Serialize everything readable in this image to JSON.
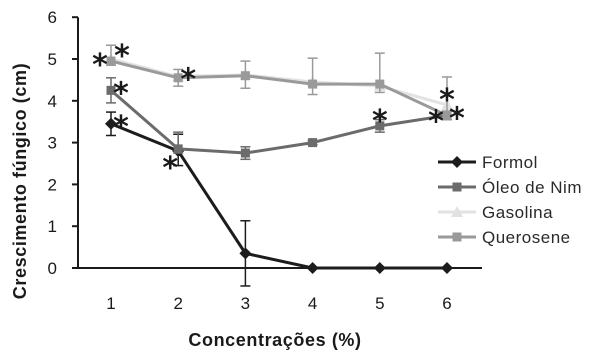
{
  "chart_data": {
    "type": "line",
    "xlabel": "Concentrações (%)",
    "ylabel": "Crescimento fúngico (cm)",
    "categories": [
      "1",
      "2",
      "3",
      "4",
      "5",
      "6"
    ],
    "ylim": [
      0,
      6
    ],
    "yticks": [
      0,
      1,
      2,
      3,
      4,
      5,
      6
    ],
    "grid": false,
    "legend_position": "right",
    "series": [
      {
        "name": "Formol",
        "color": "#1c1c1c",
        "marker": "diamond",
        "values": [
          3.45,
          2.8,
          0.35,
          0,
          0,
          0
        ],
        "error_plus": [
          0.28,
          0.4,
          0.78,
          0,
          0,
          0
        ],
        "error_minus": [
          0.28,
          0.35,
          0.78,
          0,
          0,
          0
        ]
      },
      {
        "name": "Óleo de Nim",
        "color": "#6b6b6b",
        "marker": "square",
        "values": [
          4.25,
          2.85,
          2.75,
          3.0,
          3.4,
          3.65
        ],
        "error_plus": [
          0.3,
          0.4,
          0.15,
          0.05,
          0.15,
          0.1
        ],
        "error_minus": [
          0.3,
          0.1,
          0.15,
          0.05,
          0.15,
          0.1
        ]
      },
      {
        "name": "Gasolina",
        "color": "#e2e2e2",
        "marker": "triangle",
        "values": [
          5.0,
          4.58,
          4.62,
          4.45,
          4.35,
          3.9
        ],
        "error_plus": [
          0,
          0,
          0,
          0,
          0,
          0
        ],
        "error_minus": [
          0,
          0,
          0,
          0,
          0,
          0
        ]
      },
      {
        "name": "Querosene",
        "color": "#9a9a9a",
        "marker": "square",
        "values": [
          4.95,
          4.55,
          4.6,
          4.4,
          4.4,
          3.65
        ],
        "error_plus": [
          0.38,
          0.2,
          0.35,
          0.62,
          0.74,
          0.92
        ],
        "error_minus": [
          0.1,
          0.2,
          0.3,
          0.25,
          0.2,
          0.1
        ]
      }
    ],
    "annotations": [
      {
        "text": "*",
        "series": "Gasolina",
        "x": "1",
        "position": "left"
      },
      {
        "text": "*",
        "series": "Gasolina",
        "x": "1",
        "position": "upper-right"
      },
      {
        "text": "*",
        "series": "Óleo de Nim",
        "x": "1",
        "position": "right"
      },
      {
        "text": "*",
        "series": "Formol",
        "x": "1",
        "position": "right"
      },
      {
        "text": "*",
        "series": "Gasolina",
        "x": "2",
        "position": "right"
      },
      {
        "text": "*",
        "series": "Formol",
        "x": "2",
        "position": "lower-left"
      },
      {
        "text": "*",
        "series": "Óleo de Nim",
        "x": "5",
        "position": "above"
      },
      {
        "text": "*",
        "series": "Gasolina",
        "x": "6",
        "position": "above"
      },
      {
        "text": "*",
        "series": "Óleo de Nim",
        "x": "6",
        "position": "left"
      },
      {
        "text": "*",
        "series": "Óleo de Nim",
        "x": "6",
        "position": "right"
      }
    ]
  }
}
